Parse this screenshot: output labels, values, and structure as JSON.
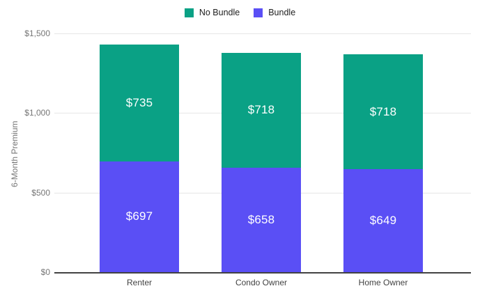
{
  "legend": {
    "items": [
      {
        "label": "No Bundle",
        "color": "#0aa185"
      },
      {
        "label": "Bundle",
        "color": "#5a4ff5"
      }
    ]
  },
  "chart_data": {
    "type": "bar",
    "stacked": true,
    "title": "",
    "categories": [
      "Renter",
      "Condo Owner",
      "Home Owner"
    ],
    "series": [
      {
        "name": "Bundle",
        "color": "#5a4ff5",
        "values": [
          697,
          658,
          649
        ],
        "data_labels": [
          "$697",
          "$658",
          "$649"
        ]
      },
      {
        "name": "No Bundle",
        "color": "#0aa185",
        "values": [
          735,
          718,
          718
        ],
        "data_labels": [
          "$735",
          "$718",
          "$718"
        ]
      }
    ],
    "xlabel": "",
    "ylabel": "6-Month Premium",
    "ylim": [
      0,
      1500
    ],
    "yticks": [
      {
        "value": 0,
        "label": "$0"
      },
      {
        "value": 500,
        "label": "$500"
      },
      {
        "value": 1000,
        "label": "$1,000"
      },
      {
        "value": 1500,
        "label": "$1,500"
      }
    ],
    "legend_position": "top",
    "grid": true
  },
  "colors": {
    "background": "#ffffff",
    "axis_line": "#424242",
    "gridline": "#e6e6e6",
    "tick_label": "#757575",
    "category_label": "#424242",
    "value_label": "#ffffff"
  }
}
